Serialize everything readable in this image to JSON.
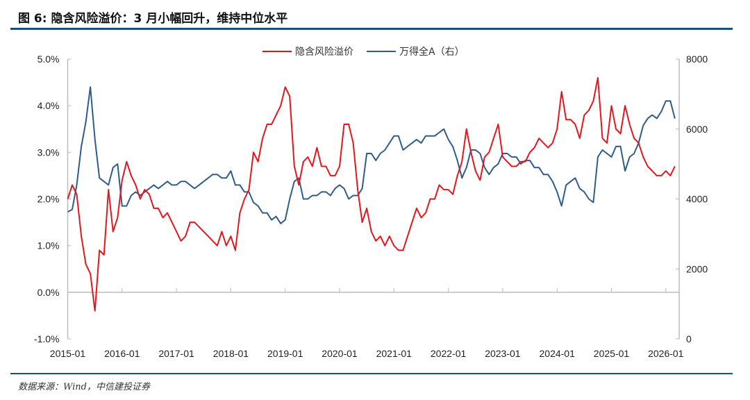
{
  "title": "图 6: 隐含风险溢价：3 月小幅回升，维持中位水平",
  "source": "数据来源：Wind，中信建投证券",
  "chart_data": {
    "type": "line",
    "legend_position": "top-center",
    "grid": false,
    "x_tick_labels": [
      "2015-01",
      "2016-01",
      "2017-01",
      "2018-01",
      "2019-01",
      "2020-01",
      "2021-01",
      "2022-01",
      "2023-01",
      "2024-01",
      "2025-01",
      "2026-01"
    ],
    "y_left": {
      "ylim": [
        -1.0,
        5.0
      ],
      "tick_labels": [
        "-1.0%",
        "0.0%",
        "1.0%",
        "2.0%",
        "3.0%",
        "4.0%",
        "5.0%"
      ]
    },
    "y_right": {
      "ylim": [
        0,
        8000
      ],
      "tick_labels": [
        "0",
        "2000",
        "4000",
        "6000",
        "8000"
      ]
    },
    "x": [
      "2015-01",
      "2015-02",
      "2015-03",
      "2015-04",
      "2015-05",
      "2015-06",
      "2015-07",
      "2015-08",
      "2015-09",
      "2015-10",
      "2015-11",
      "2015-12",
      "2016-01",
      "2016-02",
      "2016-03",
      "2016-04",
      "2016-05",
      "2016-06",
      "2016-07",
      "2016-08",
      "2016-09",
      "2016-10",
      "2016-11",
      "2016-12",
      "2017-01",
      "2017-02",
      "2017-03",
      "2017-04",
      "2017-05",
      "2017-06",
      "2017-07",
      "2017-08",
      "2017-09",
      "2017-10",
      "2017-11",
      "2017-12",
      "2018-01",
      "2018-02",
      "2018-03",
      "2018-04",
      "2018-05",
      "2018-06",
      "2018-07",
      "2018-08",
      "2018-09",
      "2018-10",
      "2018-11",
      "2018-12",
      "2019-01",
      "2019-02",
      "2019-03",
      "2019-04",
      "2019-05",
      "2019-06",
      "2019-07",
      "2019-08",
      "2019-09",
      "2019-10",
      "2019-11",
      "2019-12",
      "2020-01",
      "2020-02",
      "2020-03",
      "2020-04",
      "2020-05",
      "2020-06",
      "2020-07",
      "2020-08",
      "2020-09",
      "2020-10",
      "2020-11",
      "2020-12",
      "2021-01",
      "2021-02",
      "2021-03",
      "2021-04",
      "2021-05",
      "2021-06",
      "2021-07",
      "2021-08",
      "2021-09",
      "2021-10",
      "2021-11",
      "2021-12",
      "2022-01",
      "2022-02",
      "2022-03",
      "2022-04",
      "2022-05",
      "2022-06",
      "2022-07",
      "2022-08",
      "2022-09",
      "2022-10",
      "2022-11",
      "2022-12",
      "2023-01",
      "2023-02",
      "2023-03",
      "2023-04",
      "2023-05",
      "2023-06",
      "2023-07",
      "2023-08",
      "2023-09",
      "2023-10",
      "2023-11",
      "2023-12",
      "2024-01",
      "2024-02",
      "2024-03",
      "2024-04",
      "2024-05",
      "2024-06",
      "2024-07",
      "2024-08",
      "2024-09",
      "2024-10",
      "2024-11",
      "2024-12",
      "2025-01",
      "2025-02",
      "2025-03",
      "2025-04",
      "2025-05",
      "2025-06",
      "2025-07",
      "2025-08",
      "2025-09",
      "2025-10",
      "2025-11",
      "2025-12",
      "2026-01",
      "2026-02",
      "2026-03"
    ],
    "series": [
      {
        "name": "隐含风险溢价",
        "axis": "left",
        "color": "#e8141b",
        "unit": "%",
        "values": [
          2.0,
          2.3,
          2.1,
          1.2,
          0.6,
          0.4,
          -0.4,
          0.9,
          0.8,
          2.2,
          1.3,
          1.6,
          2.4,
          2.8,
          2.5,
          2.3,
          2.0,
          2.2,
          2.1,
          1.8,
          1.8,
          1.6,
          1.7,
          1.5,
          1.3,
          1.1,
          1.2,
          1.5,
          1.5,
          1.4,
          1.3,
          1.2,
          1.1,
          1.0,
          1.3,
          1.0,
          1.2,
          0.9,
          1.7,
          2.0,
          2.2,
          3.0,
          2.8,
          3.3,
          3.6,
          3.6,
          3.8,
          4.0,
          4.4,
          4.2,
          2.7,
          2.3,
          2.8,
          2.9,
          2.7,
          3.1,
          2.7,
          2.7,
          2.5,
          2.5,
          2.7,
          3.6,
          3.6,
          3.2,
          2.2,
          1.5,
          1.8,
          1.3,
          1.1,
          1.2,
          1.0,
          1.2,
          1.0,
          0.9,
          0.9,
          1.2,
          1.5,
          1.8,
          1.6,
          1.7,
          2.0,
          2.0,
          2.3,
          2.2,
          2.2,
          2.1,
          2.5,
          2.8,
          3.5,
          3.0,
          2.6,
          2.4,
          2.9,
          3.0,
          3.3,
          3.6,
          2.9,
          2.8,
          2.7,
          2.7,
          2.8,
          2.8,
          3.0,
          3.1,
          3.3,
          3.2,
          3.1,
          3.2,
          3.5,
          4.3,
          3.7,
          3.7,
          3.6,
          3.3,
          3.8,
          3.9,
          4.1,
          4.6,
          3.3,
          3.2,
          4.0,
          3.5,
          3.4,
          4.0,
          3.6,
          3.3,
          3.2,
          2.9,
          2.7,
          2.6,
          2.5,
          2.5,
          2.6,
          2.5,
          2.7
        ]
      },
      {
        "name": "万得全A（右）",
        "axis": "right",
        "color": "#2e5c8a",
        "values": [
          3630,
          3700,
          4400,
          5500,
          6200,
          7200,
          5700,
          4600,
          4500,
          4400,
          4900,
          5000,
          3800,
          3800,
          4100,
          4200,
          4100,
          4200,
          4300,
          4400,
          4300,
          4400,
          4500,
          4400,
          4400,
          4500,
          4500,
          4400,
          4300,
          4400,
          4500,
          4600,
          4700,
          4700,
          4600,
          4600,
          4800,
          4400,
          4400,
          4200,
          4200,
          3900,
          3800,
          3600,
          3600,
          3400,
          3500,
          3300,
          3400,
          4000,
          4500,
          4600,
          4000,
          4000,
          4100,
          4100,
          4200,
          4200,
          4100,
          4300,
          4400,
          4300,
          4000,
          4100,
          4100,
          4300,
          5300,
          5300,
          5100,
          5300,
          5400,
          5600,
          5800,
          5800,
          5400,
          5500,
          5600,
          5700,
          5600,
          5800,
          5800,
          5800,
          5900,
          6000,
          5700,
          5500,
          5100,
          4600,
          4900,
          5400,
          5400,
          5300,
          4900,
          4700,
          4900,
          5000,
          5300,
          5300,
          5200,
          5200,
          5000,
          5100,
          5100,
          4900,
          4900,
          4700,
          4700,
          4500,
          4200,
          3800,
          4400,
          4500,
          4600,
          4300,
          4200,
          4000,
          3900,
          5200,
          5400,
          5300,
          5200,
          5500,
          5500,
          4800,
          5200,
          5300,
          5600,
          6100,
          6300,
          6400,
          6300,
          6500,
          6800,
          6800,
          6300
        ]
      }
    ]
  }
}
